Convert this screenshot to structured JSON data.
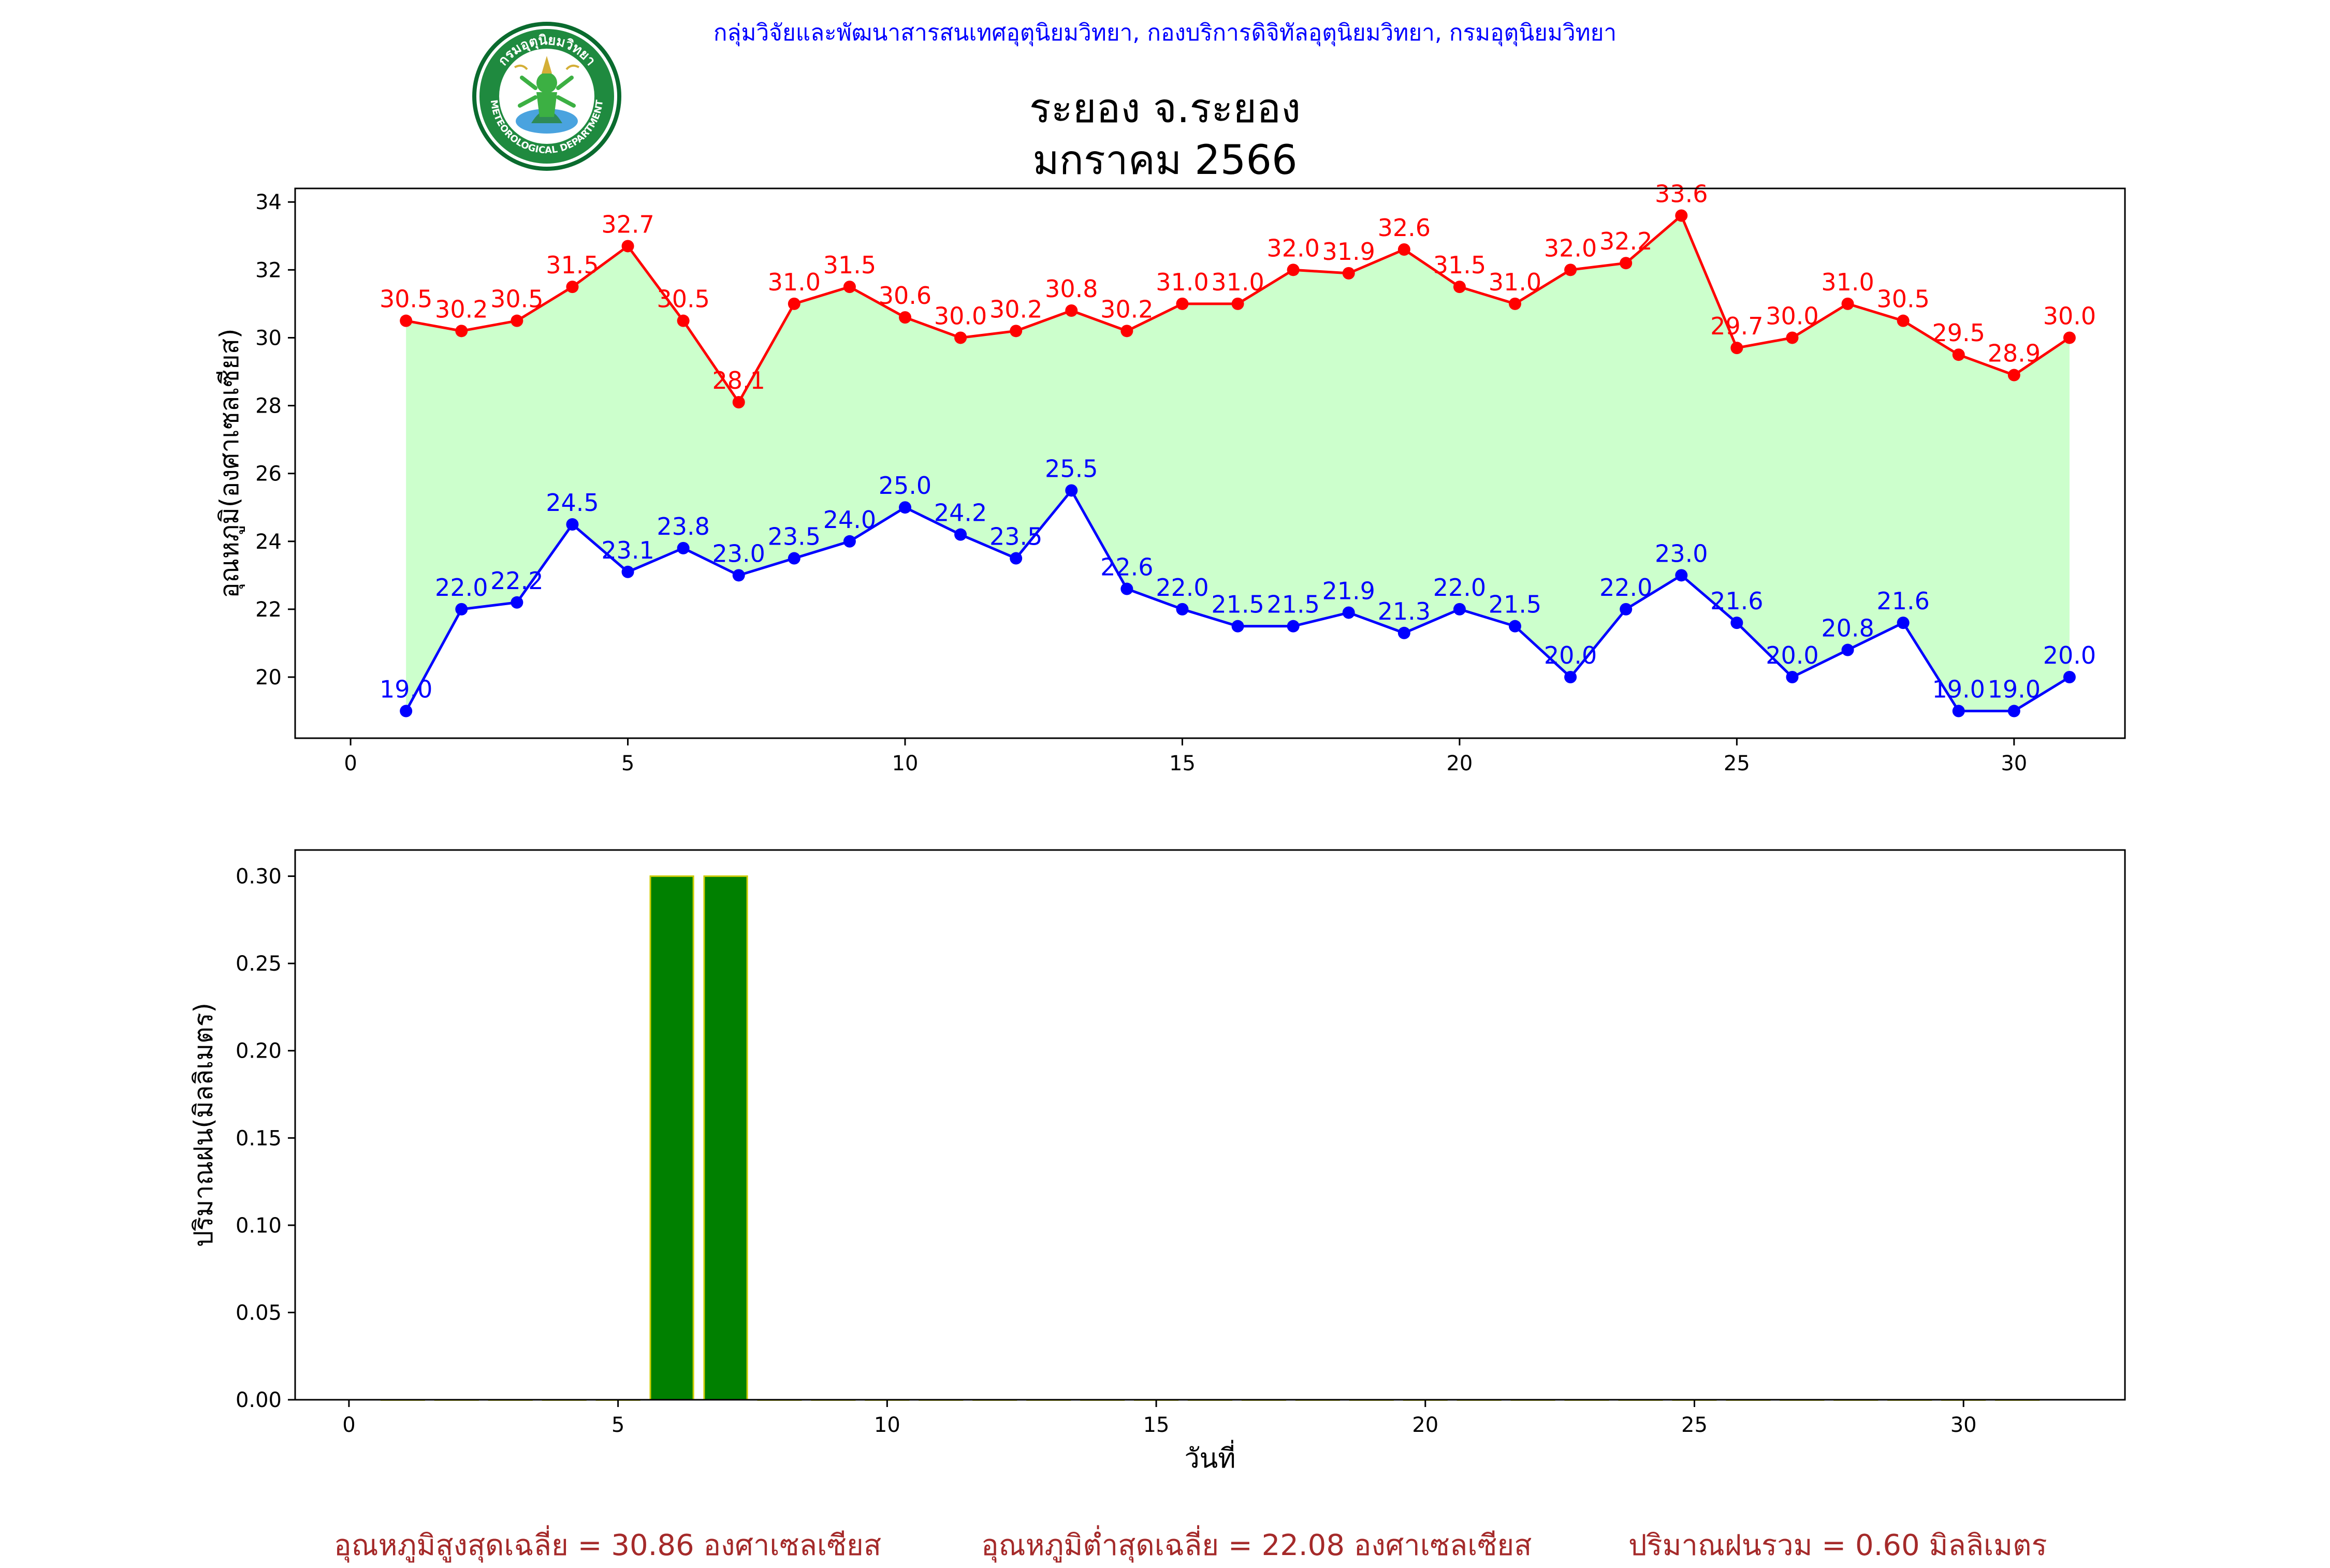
{
  "header": {
    "text": "กลุ่มวิจัยและพัฒนาสารสนเทศอุตุนิยมวิทยา, กองบริการดิจิทัลอุตุนิยมวิทยา, กรมอุตุนิยมวิทยา",
    "logo_text_top": "กรมอุตุนิยมวิทยา",
    "logo_text_bottom": "METEOROLOGICAL DEPARTMENT"
  },
  "title": {
    "line1": "ระยอง จ.ระยอง",
    "line2": "มกราคม 2566"
  },
  "colors": {
    "tmax": "#ff0000",
    "tmin": "#0000ff",
    "fill": "#ccffcc",
    "rain_bar": "#008000",
    "rain_edge": "#cccc00",
    "header": "#0000ff",
    "summary": "#a52a2a"
  },
  "chart_data": [
    {
      "type": "line",
      "ylabel": "อุณหภูมิ(องศาเซลเซียส)",
      "xlabel": "",
      "xlim": [
        -1,
        32
      ],
      "ylim": [
        18.2,
        34.4
      ],
      "xticks": [
        0,
        5,
        10,
        15,
        20,
        25,
        30
      ],
      "yticks": [
        20,
        22,
        24,
        26,
        28,
        30,
        32,
        34
      ],
      "fill_between": true,
      "x": [
        1,
        2,
        3,
        4,
        5,
        6,
        7,
        8,
        9,
        10,
        11,
        12,
        13,
        14,
        15,
        16,
        17,
        18,
        19,
        20,
        21,
        22,
        23,
        24,
        25,
        26,
        27,
        28,
        29,
        30,
        31
      ],
      "series": [
        {
          "key": "tmax",
          "values": [
            30.5,
            30.2,
            30.5,
            31.5,
            32.7,
            30.5,
            28.1,
            31.0,
            31.5,
            30.6,
            30.0,
            30.2,
            30.8,
            30.2,
            31.0,
            31.0,
            32.0,
            31.9,
            32.6,
            31.5,
            31.0,
            32.0,
            32.2,
            33.6,
            29.7,
            30.0,
            31.0,
            30.5,
            29.5,
            28.9,
            30.0
          ]
        },
        {
          "key": "tmin",
          "values": [
            19.0,
            22.0,
            22.2,
            24.5,
            23.1,
            23.8,
            23.0,
            23.5,
            24.0,
            25.0,
            24.2,
            23.5,
            25.5,
            22.6,
            22.0,
            21.5,
            21.5,
            21.9,
            21.3,
            22.0,
            21.5,
            20.0,
            22.0,
            23.0,
            21.6,
            20.0,
            20.8,
            21.6,
            19.0,
            19.0,
            20.0
          ]
        }
      ]
    },
    {
      "type": "bar",
      "ylabel": "ปริมาณฝน(มิลลิเมตร)",
      "xlabel": "วันที่",
      "xlim": [
        -1,
        33
      ],
      "ylim": [
        0,
        0.315
      ],
      "xticks": [
        0,
        5,
        10,
        15,
        20,
        25,
        30
      ],
      "yticks": [
        0.0,
        0.05,
        0.1,
        0.15,
        0.2,
        0.25,
        0.3
      ],
      "x": [
        1,
        2,
        3,
        4,
        5,
        6,
        7,
        8,
        9,
        10,
        11,
        12,
        13,
        14,
        15,
        16,
        17,
        18,
        19,
        20,
        21,
        22,
        23,
        24,
        25,
        26,
        27,
        28,
        29,
        30,
        31
      ],
      "values": [
        0,
        0,
        0,
        0,
        0,
        0.3,
        0.3,
        0,
        0,
        0,
        0,
        0,
        0,
        0,
        0,
        0,
        0,
        0,
        0,
        0,
        0,
        0,
        0,
        0,
        0,
        0,
        0,
        0,
        0,
        0,
        0
      ]
    }
  ],
  "summary": {
    "avg_max": "อุณหภูมิสูงสุดเฉลี่ย = 30.86 องศาเซลเซียส",
    "avg_min": "อุณหภูมิต่ำสุดเฉลี่ย = 22.08 องศาเซลเซียส",
    "total_rain": "ปริมาณฝนรวม = 0.60 มิลลิเมตร"
  }
}
